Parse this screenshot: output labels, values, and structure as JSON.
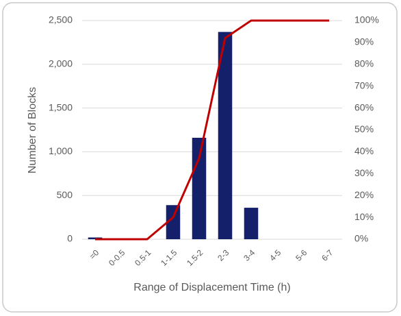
{
  "chart_data": {
    "type": "combo",
    "x_label": "Range of Displacement Time (h)",
    "y_label": "Number of Blocks",
    "categories": [
      "=0",
      "0-0.5",
      "0.5-1",
      "1-1.5",
      "1.5-2",
      "2-3",
      "3-4",
      "4-5",
      "5-6",
      "6-7"
    ],
    "series": [
      {
        "type": "bar",
        "color": "#14206a",
        "values": [
          20,
          0,
          0,
          390,
          1160,
          2370,
          360,
          0,
          0,
          0
        ]
      },
      {
        "type": "line",
        "axis": "y2",
        "color": "#c00000",
        "values": [
          0,
          0,
          0,
          10,
          37,
          92,
          100,
          100,
          100,
          100
        ]
      }
    ],
    "ylim": [
      0,
      2500
    ],
    "yticks": [
      0,
      500,
      {
        "value": 1000,
        "label": "1,000"
      },
      {
        "value": 1500,
        "label": "1,500"
      },
      {
        "value": 2000,
        "label": "2,000"
      },
      {
        "value": 2500,
        "label": "2,500"
      }
    ],
    "y2lim": [
      0,
      100
    ],
    "y2ticks": [
      {
        "value": 0,
        "label": "0%"
      },
      {
        "value": 10,
        "label": "10%"
      },
      {
        "value": 20,
        "label": "20%"
      },
      {
        "value": 30,
        "label": "30%"
      },
      {
        "value": 40,
        "label": "40%"
      },
      {
        "value": 50,
        "label": "50%"
      },
      {
        "value": 60,
        "label": "60%"
      },
      {
        "value": 70,
        "label": "70%"
      },
      {
        "value": 80,
        "label": "80%"
      },
      {
        "value": 90,
        "label": "90%"
      },
      {
        "value": 100,
        "label": "100%"
      }
    ],
    "grid": true
  }
}
